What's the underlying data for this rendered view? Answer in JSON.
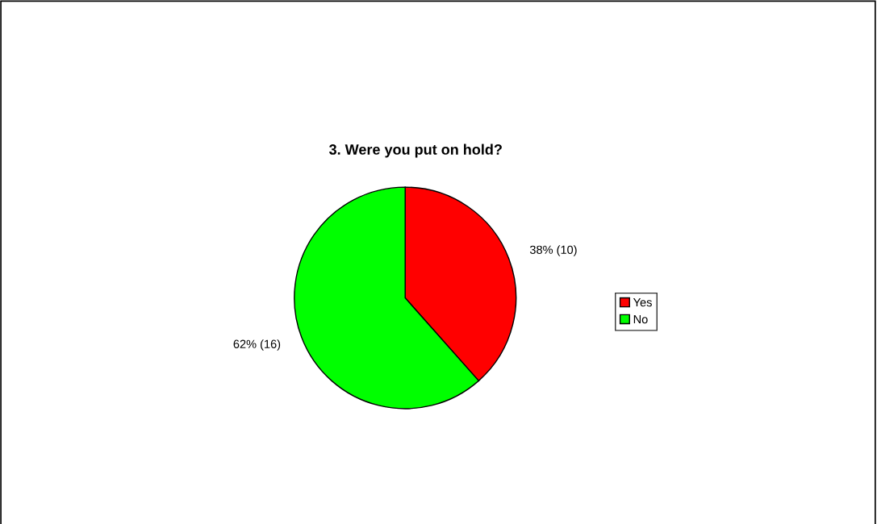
{
  "chart_data": {
    "type": "pie",
    "title": "3. Were you put on hold?",
    "categories": [
      "Yes",
      "No"
    ],
    "values": [
      10,
      16
    ],
    "colors": [
      "#ff0000",
      "#00ff00"
    ],
    "value_labels": [
      "38% (10)",
      "62% (16)"
    ],
    "legend": "right"
  }
}
